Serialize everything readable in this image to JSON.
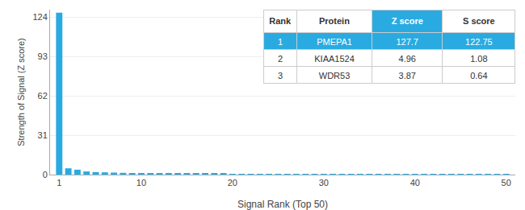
{
  "chart_data": {
    "type": "bar",
    "x": [
      1,
      2,
      3,
      4,
      5,
      6,
      7,
      8,
      9,
      10,
      11,
      12,
      13,
      14,
      15,
      16,
      17,
      18,
      19,
      20,
      21,
      22,
      23,
      24,
      25,
      26,
      27,
      28,
      29,
      30,
      31,
      32,
      33,
      34,
      35,
      36,
      37,
      38,
      39,
      40,
      41,
      42,
      43,
      44,
      45,
      46,
      47,
      48,
      49,
      50
    ],
    "values": [
      127.7,
      4.96,
      3.87,
      2.5,
      2.0,
      1.8,
      1.6,
      1.4,
      1.2,
      1.1,
      1.0,
      0.95,
      0.9,
      0.85,
      0.8,
      0.75,
      0.7,
      0.68,
      0.65,
      0.62,
      0.6,
      0.58,
      0.56,
      0.54,
      0.52,
      0.5,
      0.49,
      0.48,
      0.47,
      0.46,
      0.45,
      0.44,
      0.43,
      0.42,
      0.41,
      0.4,
      0.39,
      0.38,
      0.37,
      0.36,
      0.35,
      0.34,
      0.33,
      0.32,
      0.31,
      0.3,
      0.29,
      0.28,
      0.27,
      0.26
    ],
    "color": "#29ABE2",
    "xlabel": "Signal Rank (Top 50)",
    "ylabel": "Strength of Signal (Z score)",
    "xlim": [
      0,
      51
    ],
    "ylim": [
      0,
      130
    ],
    "xticks": [
      1,
      10,
      20,
      30,
      40,
      50
    ],
    "yticks": [
      0,
      31,
      62,
      93,
      124
    ],
    "grid": true,
    "table": [
      [
        "Rank",
        "Protein",
        "Z score",
        "S score"
      ],
      [
        "1",
        "PMEPA1",
        "127.7",
        "122.75"
      ],
      [
        "2",
        "KIAA1524",
        "4.96",
        "1.08"
      ],
      [
        "3",
        "WDR53",
        "3.87",
        "0.64"
      ]
    ]
  }
}
